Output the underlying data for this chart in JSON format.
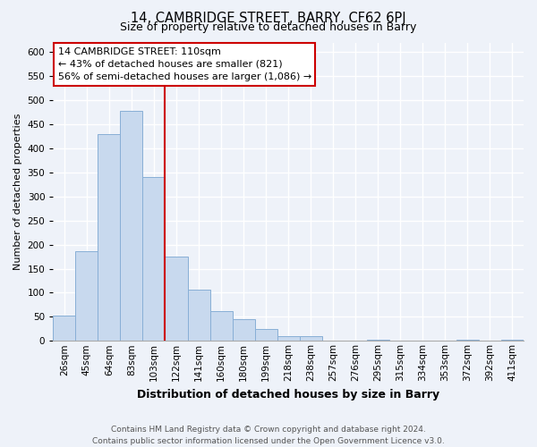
{
  "title_line1": "14, CAMBRIDGE STREET, BARRY, CF62 6PJ",
  "title_line2": "Size of property relative to detached houses in Barry",
  "xlabel": "Distribution of detached houses by size in Barry",
  "ylabel": "Number of detached properties",
  "bar_labels": [
    "26sqm",
    "45sqm",
    "64sqm",
    "83sqm",
    "103sqm",
    "122sqm",
    "141sqm",
    "160sqm",
    "180sqm",
    "199sqm",
    "218sqm",
    "238sqm",
    "257sqm",
    "276sqm",
    "295sqm",
    "315sqm",
    "334sqm",
    "353sqm",
    "372sqm",
    "392sqm",
    "411sqm"
  ],
  "bar_values": [
    53,
    187,
    430,
    477,
    340,
    175,
    107,
    62,
    46,
    25,
    10,
    10,
    0,
    0,
    3,
    0,
    0,
    0,
    3,
    0,
    3
  ],
  "bar_color": "#c8d9ee",
  "bar_edge_color": "#88afd6",
  "highlight_line_color": "#cc0000",
  "highlight_line_index": 4,
  "annotation_line1": "14 CAMBRIDGE STREET: 110sqm",
  "annotation_line2": "← 43% of detached houses are smaller (821)",
  "annotation_line3": "56% of semi-detached houses are larger (1,086) →",
  "ylim": [
    0,
    620
  ],
  "yticks": [
    0,
    50,
    100,
    150,
    200,
    250,
    300,
    350,
    400,
    450,
    500,
    550,
    600
  ],
  "footer_line1": "Contains HM Land Registry data © Crown copyright and database right 2024.",
  "footer_line2": "Contains public sector information licensed under the Open Government Licence v3.0.",
  "bg_color": "#eef2f9",
  "grid_color": "#ffffff",
  "title_fontsize": 10.5,
  "subtitle_fontsize": 9,
  "ylabel_fontsize": 8,
  "xlabel_fontsize": 9,
  "tick_fontsize": 7.5,
  "footer_fontsize": 6.5
}
